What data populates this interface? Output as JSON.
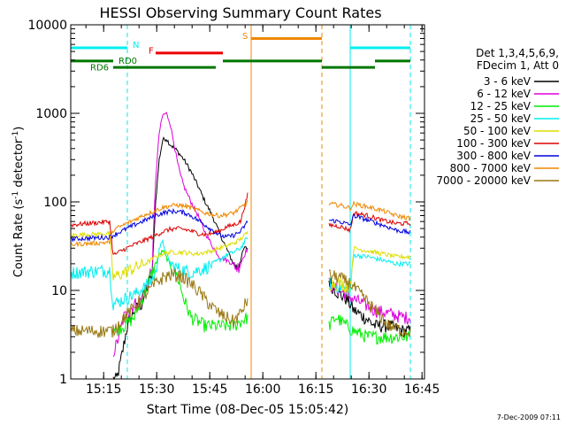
{
  "chart_data": {
    "type": "line",
    "title": "HESSI Observing Summary Count Rates",
    "xlabel": "Start Time (08-Dec-05 15:05:42)",
    "ylabel": "Count Rate (s",
    "ylabel_sup1": "-1",
    "ylabel_mid": " detector",
    "ylabel_sup2": "-1",
    "ylabel_end": ")",
    "y_scale": "log",
    "ylim": [
      1,
      10000
    ],
    "xlim_minutes": [
      0,
      100
    ],
    "x_ticks": [
      {
        "minute": 9.3,
        "label": "15:15"
      },
      {
        "minute": 24.3,
        "label": "15:30"
      },
      {
        "minute": 39.3,
        "label": "15:45"
      },
      {
        "minute": 54.3,
        "label": "16:00"
      },
      {
        "minute": 69.3,
        "label": "16:15"
      },
      {
        "minute": 84.3,
        "label": "16:30"
      },
      {
        "minute": 99.3,
        "label": "16:45"
      }
    ],
    "y_ticks": [
      {
        "value": 1,
        "label": "1"
      },
      {
        "value": 10,
        "label": "10"
      },
      {
        "value": 100,
        "label": "100"
      },
      {
        "value": 1000,
        "label": "1000"
      },
      {
        "value": 10000,
        "label": "10000"
      }
    ],
    "legend_header": [
      "Det 1,3,4,5,6,9,",
      "FDecim 1, Att 0"
    ],
    "legend_placement": "right",
    "gaps": [
      [
        50,
        73
      ]
    ],
    "series": [
      {
        "name": "3 - 6 keV",
        "color": "#000000",
        "points": [
          [
            12,
            1
          ],
          [
            13,
            1
          ],
          [
            14,
            1.5
          ],
          [
            16,
            4
          ],
          [
            18,
            6
          ],
          [
            20,
            7
          ],
          [
            23,
            15
          ],
          [
            24,
            100
          ],
          [
            25,
            300
          ],
          [
            26,
            500
          ],
          [
            27,
            520
          ],
          [
            28,
            450
          ],
          [
            30,
            380
          ],
          [
            32,
            300
          ],
          [
            34,
            220
          ],
          [
            36,
            150
          ],
          [
            38,
            100
          ],
          [
            40,
            70
          ],
          [
            42,
            45
          ],
          [
            44,
            30
          ],
          [
            46,
            20
          ],
          [
            47,
            18
          ],
          [
            48,
            22
          ],
          [
            49,
            30
          ],
          [
            50,
            30
          ],
          [
            73,
            13
          ],
          [
            74,
            11
          ],
          [
            76,
            9
          ],
          [
            78,
            8
          ],
          [
            80,
            6
          ],
          [
            83,
            5
          ],
          [
            86,
            4
          ],
          [
            90,
            4
          ],
          [
            94,
            3.5
          ],
          [
            96,
            3.5
          ]
        ]
      },
      {
        "name": "6 - 12 keV",
        "color": "#dd00dd",
        "points": [
          [
            12,
            2
          ],
          [
            13,
            2.5
          ],
          [
            15,
            5
          ],
          [
            18,
            7
          ],
          [
            20,
            8
          ],
          [
            23,
            18
          ],
          [
            24,
            180
          ],
          [
            25,
            600
          ],
          [
            26,
            950
          ],
          [
            27,
            1000
          ],
          [
            28,
            800
          ],
          [
            29,
            500
          ],
          [
            30,
            300
          ],
          [
            31,
            200
          ],
          [
            32,
            150
          ],
          [
            34,
            100
          ],
          [
            36,
            70
          ],
          [
            38,
            45
          ],
          [
            40,
            32
          ],
          [
            42,
            24
          ],
          [
            44,
            22
          ],
          [
            46,
            20
          ],
          [
            47,
            18
          ],
          [
            48,
            20
          ],
          [
            49,
            25
          ],
          [
            50,
            30
          ],
          [
            73,
            12
          ],
          [
            74,
            11
          ],
          [
            76,
            10
          ],
          [
            78,
            9
          ],
          [
            80,
            8
          ],
          [
            83,
            7
          ],
          [
            86,
            6
          ],
          [
            90,
            5.5
          ],
          [
            94,
            5
          ],
          [
            96,
            5
          ]
        ]
      },
      {
        "name": "12 - 25 keV",
        "color": "#00ee00",
        "points": [
          [
            12,
            3.5
          ],
          [
            15,
            4
          ],
          [
            18,
            5
          ],
          [
            21,
            10
          ],
          [
            24,
            20
          ],
          [
            25,
            25
          ],
          [
            26,
            28
          ],
          [
            28,
            20
          ],
          [
            30,
            15
          ],
          [
            32,
            8
          ],
          [
            34,
            5
          ],
          [
            38,
            4
          ],
          [
            42,
            4
          ],
          [
            46,
            4
          ],
          [
            50,
            5
          ],
          [
            73,
            4
          ],
          [
            75,
            5
          ],
          [
            78,
            4
          ],
          [
            80,
            3.5
          ],
          [
            84,
            3
          ],
          [
            88,
            3
          ],
          [
            92,
            3
          ],
          [
            96,
            3
          ]
        ]
      },
      {
        "name": "25 - 50 keV",
        "color": "#00eeee",
        "points": [
          [
            0,
            16
          ],
          [
            11,
            17
          ],
          [
            12,
            7
          ],
          [
            15,
            8
          ],
          [
            18,
            9
          ],
          [
            21,
            11
          ],
          [
            24,
            15
          ],
          [
            25,
            30
          ],
          [
            26,
            35
          ],
          [
            28,
            20
          ],
          [
            30,
            18
          ],
          [
            32,
            17
          ],
          [
            34,
            16
          ],
          [
            36,
            17
          ],
          [
            38,
            18
          ],
          [
            40,
            20
          ],
          [
            42,
            22
          ],
          [
            44,
            25
          ],
          [
            46,
            27
          ],
          [
            48,
            30
          ],
          [
            50,
            40
          ],
          [
            73,
            12
          ],
          [
            76,
            11
          ],
          [
            79,
            10
          ],
          [
            80,
            25
          ],
          [
            84,
            24
          ],
          [
            88,
            22
          ],
          [
            92,
            20
          ],
          [
            96,
            20
          ]
        ]
      },
      {
        "name": "50 - 100 keV",
        "color": "#dddd00",
        "points": [
          [
            0,
            42
          ],
          [
            11,
            44
          ],
          [
            12,
            14
          ],
          [
            15,
            16
          ],
          [
            18,
            18
          ],
          [
            21,
            20
          ],
          [
            24,
            24
          ],
          [
            26,
            26
          ],
          [
            28,
            27
          ],
          [
            30,
            27
          ],
          [
            32,
            27
          ],
          [
            34,
            26
          ],
          [
            36,
            26
          ],
          [
            38,
            27
          ],
          [
            40,
            28
          ],
          [
            42,
            30
          ],
          [
            44,
            32
          ],
          [
            46,
            34
          ],
          [
            48,
            38
          ],
          [
            50,
            45
          ],
          [
            73,
            12
          ],
          [
            76,
            12
          ],
          [
            79,
            11
          ],
          [
            80,
            30
          ],
          [
            84,
            28
          ],
          [
            88,
            26
          ],
          [
            92,
            24
          ],
          [
            96,
            24
          ]
        ]
      },
      {
        "name": "100 - 300 keV",
        "color": "#dd0000",
        "points": [
          [
            0,
            55
          ],
          [
            11,
            60
          ],
          [
            12,
            25
          ],
          [
            15,
            29
          ],
          [
            18,
            33
          ],
          [
            21,
            37
          ],
          [
            24,
            42
          ],
          [
            26,
            46
          ],
          [
            28,
            49
          ],
          [
            30,
            50
          ],
          [
            32,
            49
          ],
          [
            34,
            47
          ],
          [
            36,
            44
          ],
          [
            38,
            43
          ],
          [
            40,
            44
          ],
          [
            42,
            47
          ],
          [
            44,
            52
          ],
          [
            46,
            55
          ],
          [
            48,
            60
          ],
          [
            50,
            120
          ],
          [
            73,
            55
          ],
          [
            76,
            53
          ],
          [
            79,
            48
          ],
          [
            80,
            75
          ],
          [
            84,
            70
          ],
          [
            88,
            62
          ],
          [
            92,
            57
          ],
          [
            96,
            57
          ]
        ]
      },
      {
        "name": "300 - 800 keV",
        "color": "#0000dd",
        "points": [
          [
            0,
            38
          ],
          [
            11,
            40
          ],
          [
            12,
            42
          ],
          [
            15,
            48
          ],
          [
            18,
            55
          ],
          [
            21,
            62
          ],
          [
            24,
            70
          ],
          [
            26,
            75
          ],
          [
            28,
            78
          ],
          [
            30,
            78
          ],
          [
            32,
            76
          ],
          [
            34,
            70
          ],
          [
            36,
            62
          ],
          [
            38,
            55
          ],
          [
            40,
            48
          ],
          [
            42,
            42
          ],
          [
            44,
            40
          ],
          [
            46,
            42
          ],
          [
            48,
            46
          ],
          [
            50,
            60
          ],
          [
            73,
            62
          ],
          [
            76,
            60
          ],
          [
            79,
            55
          ],
          [
            80,
            70
          ],
          [
            84,
            62
          ],
          [
            88,
            55
          ],
          [
            92,
            48
          ],
          [
            96,
            45
          ]
        ]
      },
      {
        "name": "800 - 7000 keV",
        "color": "#ee8800",
        "points": [
          [
            0,
            33
          ],
          [
            11,
            35
          ],
          [
            12,
            48
          ],
          [
            15,
            55
          ],
          [
            18,
            63
          ],
          [
            21,
            72
          ],
          [
            24,
            80
          ],
          [
            26,
            86
          ],
          [
            28,
            90
          ],
          [
            30,
            92
          ],
          [
            32,
            90
          ],
          [
            34,
            86
          ],
          [
            36,
            80
          ],
          [
            38,
            75
          ],
          [
            40,
            72
          ],
          [
            42,
            70
          ],
          [
            44,
            72
          ],
          [
            46,
            75
          ],
          [
            48,
            85
          ],
          [
            50,
            100
          ],
          [
            73,
            95
          ],
          [
            76,
            92
          ],
          [
            79,
            85
          ],
          [
            80,
            95
          ],
          [
            84,
            88
          ],
          [
            88,
            80
          ],
          [
            92,
            70
          ],
          [
            96,
            65
          ]
        ]
      },
      {
        "name": "7000 - 20000 keV",
        "color": "#997711",
        "points": [
          [
            0,
            3.5
          ],
          [
            12,
            3.5
          ],
          [
            15,
            5
          ],
          [
            18,
            6.5
          ],
          [
            21,
            9
          ],
          [
            24,
            12
          ],
          [
            26,
            14
          ],
          [
            28,
            15
          ],
          [
            30,
            15
          ],
          [
            32,
            14
          ],
          [
            34,
            12
          ],
          [
            36,
            10
          ],
          [
            38,
            8
          ],
          [
            40,
            6.5
          ],
          [
            42,
            5.5
          ],
          [
            44,
            5
          ],
          [
            46,
            4.5
          ],
          [
            48,
            5.5
          ],
          [
            50,
            8
          ],
          [
            73,
            15
          ],
          [
            76,
            14
          ],
          [
            79,
            12
          ],
          [
            82,
            9
          ],
          [
            86,
            6
          ],
          [
            90,
            4
          ],
          [
            94,
            3.5
          ],
          [
            96,
            3.5
          ]
        ]
      }
    ],
    "flags": [
      {
        "label": "N",
        "color": "#00eeee",
        "segments": [
          [
            0,
            16
          ],
          [
            79,
            96
          ]
        ],
        "value": 5500
      },
      {
        "label": "F",
        "color": "#ee0000",
        "segments": [
          [
            24,
            43
          ]
        ],
        "value": 4800
      },
      {
        "label": "S",
        "color": "#ee8800",
        "segments": [
          [
            51,
            71
          ]
        ],
        "value": 7000
      },
      {
        "label": "RD0",
        "color": "#007700",
        "segments": [
          [
            0,
            12
          ],
          [
            43,
            71
          ],
          [
            86,
            96
          ]
        ],
        "value": 3900
      },
      {
        "label": "RD6",
        "color": "#007700",
        "segments": [
          [
            12,
            41
          ],
          [
            71,
            86
          ]
        ],
        "value": 3300
      }
    ],
    "vertical_lines": [
      {
        "minute": 16,
        "color": "#00eeee",
        "style": "dashed"
      },
      {
        "minute": 51,
        "color": "#ee8800",
        "style": "solid"
      },
      {
        "minute": 71,
        "color": "#ee8800",
        "style": "dashed"
      },
      {
        "minute": 79,
        "color": "#00eeee",
        "style": "solid"
      },
      {
        "minute": 96,
        "color": "#00eeee",
        "style": "dashed"
      }
    ],
    "footer_timestamp": "7-Dec-2009 07:11"
  }
}
